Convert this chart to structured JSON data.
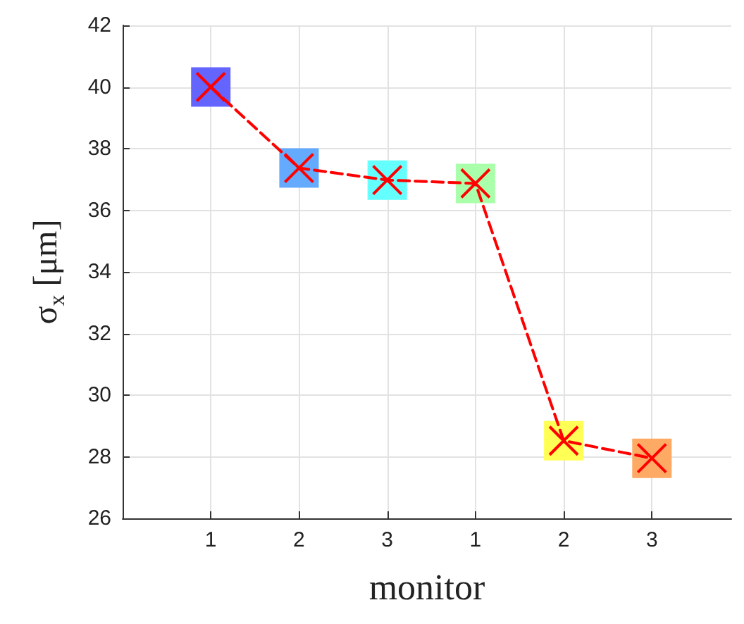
{
  "chart_data": {
    "type": "scatter",
    "xlabel": "monitor",
    "ylabel": "σ$_{x}$ [μm]",
    "categories": [
      "1",
      "2",
      "3",
      "1",
      "2",
      "3"
    ],
    "series": [
      {
        "type": "scatter",
        "marker": "square",
        "colors": [
          "#6464ff",
          "#64aaff",
          "#64ffff",
          "#aaffaa",
          "#ffff55",
          "#ffaa64"
        ],
        "values": [
          40.0,
          37.37,
          36.98,
          36.87,
          28.52,
          27.95
        ]
      },
      {
        "type": "line",
        "marker": "cross",
        "line_style": "dashed",
        "color": "#ff0000",
        "values": [
          40.0,
          37.37,
          36.98,
          36.87,
          28.52,
          27.95
        ]
      }
    ],
    "ylim": [
      26,
      42
    ],
    "yticks": [
      26,
      28,
      30,
      32,
      34,
      36,
      38,
      40,
      42
    ],
    "grid": true
  }
}
